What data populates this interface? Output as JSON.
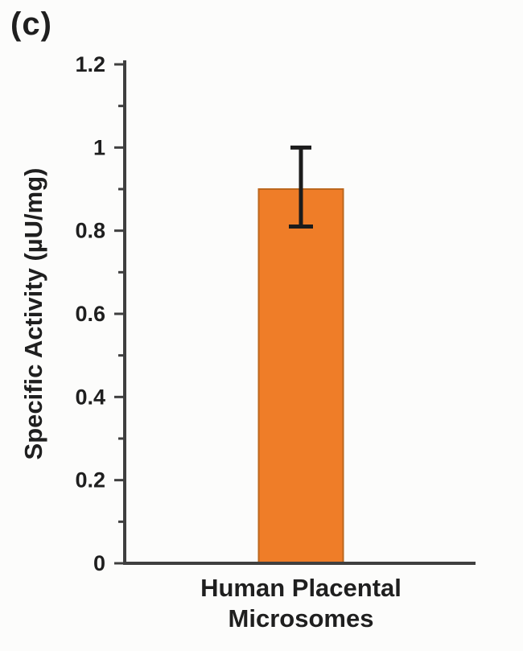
{
  "panel": {
    "label": "(c)"
  },
  "chart_data": {
    "type": "bar",
    "title": "",
    "panel_label": "(c)",
    "categories": [
      "Human Placental Microsomes"
    ],
    "category_label_lines": [
      "Human Placental",
      "Microsomes"
    ],
    "values": [
      0.9
    ],
    "error_bars": [
      {
        "upper": 1.0,
        "lower": 0.81
      }
    ],
    "xlabel": "",
    "ylabel": "Specific Activity (µU/mg)",
    "ylim": [
      0,
      1.2
    ],
    "yticks": [
      0,
      0.2,
      0.4,
      0.6,
      0.8,
      1,
      1.2
    ],
    "ytick_labels": [
      "0",
      "0.2",
      "0.4",
      "0.6",
      "0.8",
      "1",
      "1.2"
    ],
    "minor_yticks": [
      0.1,
      0.3,
      0.5,
      0.7,
      0.9,
      1.1
    ],
    "grid": false,
    "legend": null,
    "colors": {
      "bar_fill": "#EF7D28",
      "bar_border": "#BC671E",
      "error_bar": "#1C1C1C",
      "axis": "#3F3F3F",
      "text": "#1F1F1F"
    }
  }
}
